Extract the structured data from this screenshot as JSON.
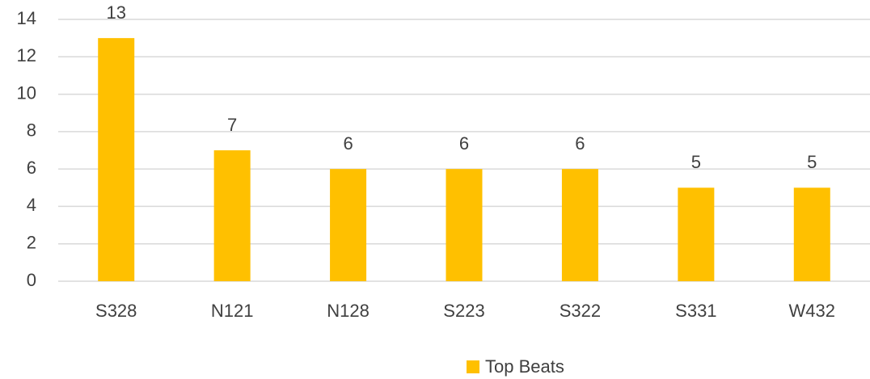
{
  "chart_data": {
    "type": "bar",
    "categories": [
      "S328",
      "N121",
      "N128",
      "S223",
      "S322",
      "S331",
      "W432"
    ],
    "series": [
      {
        "name": "Top Beats",
        "color": "#FFC000",
        "values": [
          13,
          7,
          6,
          6,
          6,
          5,
          5
        ]
      }
    ],
    "ylim": [
      0,
      14
    ],
    "yticks": [
      0,
      2,
      4,
      6,
      8,
      10,
      12,
      14
    ],
    "grid": true,
    "legend": "bottom",
    "data_labels": true
  }
}
